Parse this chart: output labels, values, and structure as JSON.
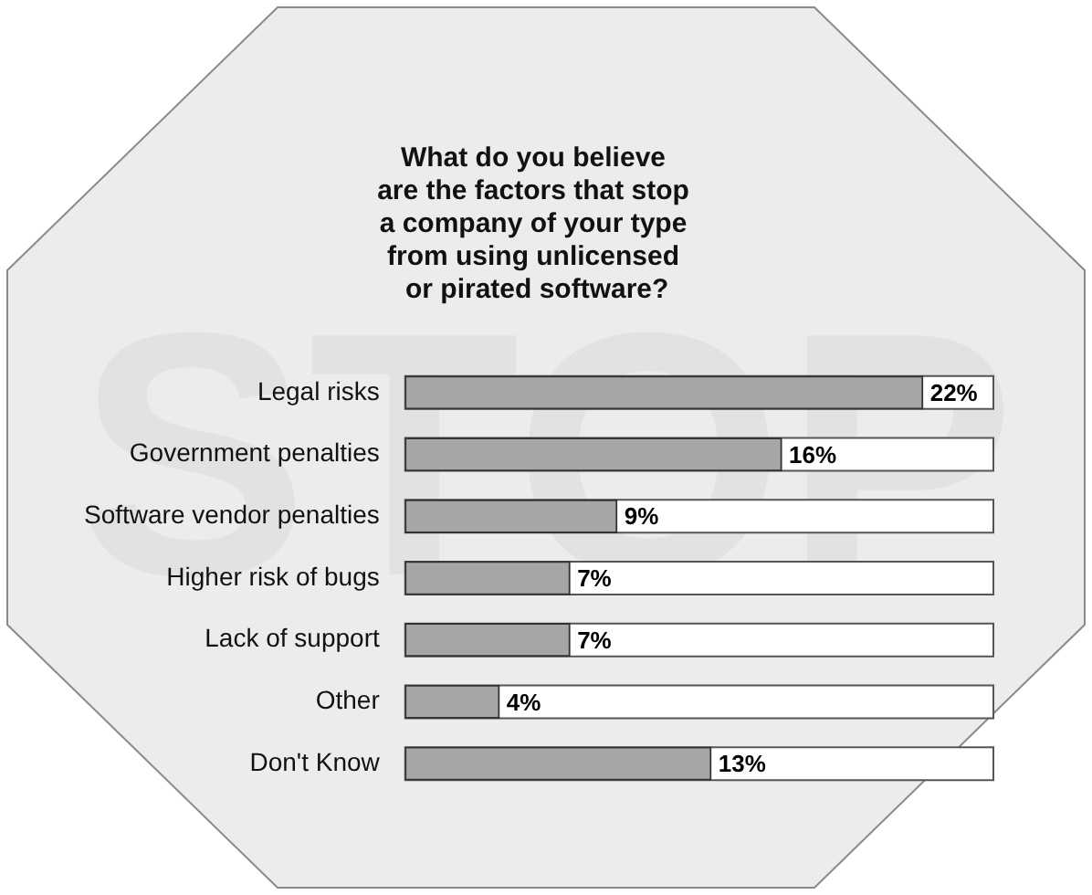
{
  "chart_data": {
    "type": "bar",
    "orientation": "horizontal",
    "title": "What do you believe\nare the factors that stop\na company of your type\nfrom using unlicensed\n or pirated software?",
    "categories": [
      "Legal risks",
      "Government penalties",
      "Software vendor penalties",
      "Higher risk of bugs",
      "Lack of support",
      "Other",
      "Don't Know"
    ],
    "values": [
      22,
      16,
      9,
      7,
      7,
      4,
      13
    ],
    "value_labels": [
      "22%",
      "16%",
      "9%",
      "7%",
      "7%",
      "4%",
      "13%"
    ],
    "color": "#a6a6a6",
    "annotations": [
      "STOP"
    ]
  }
}
